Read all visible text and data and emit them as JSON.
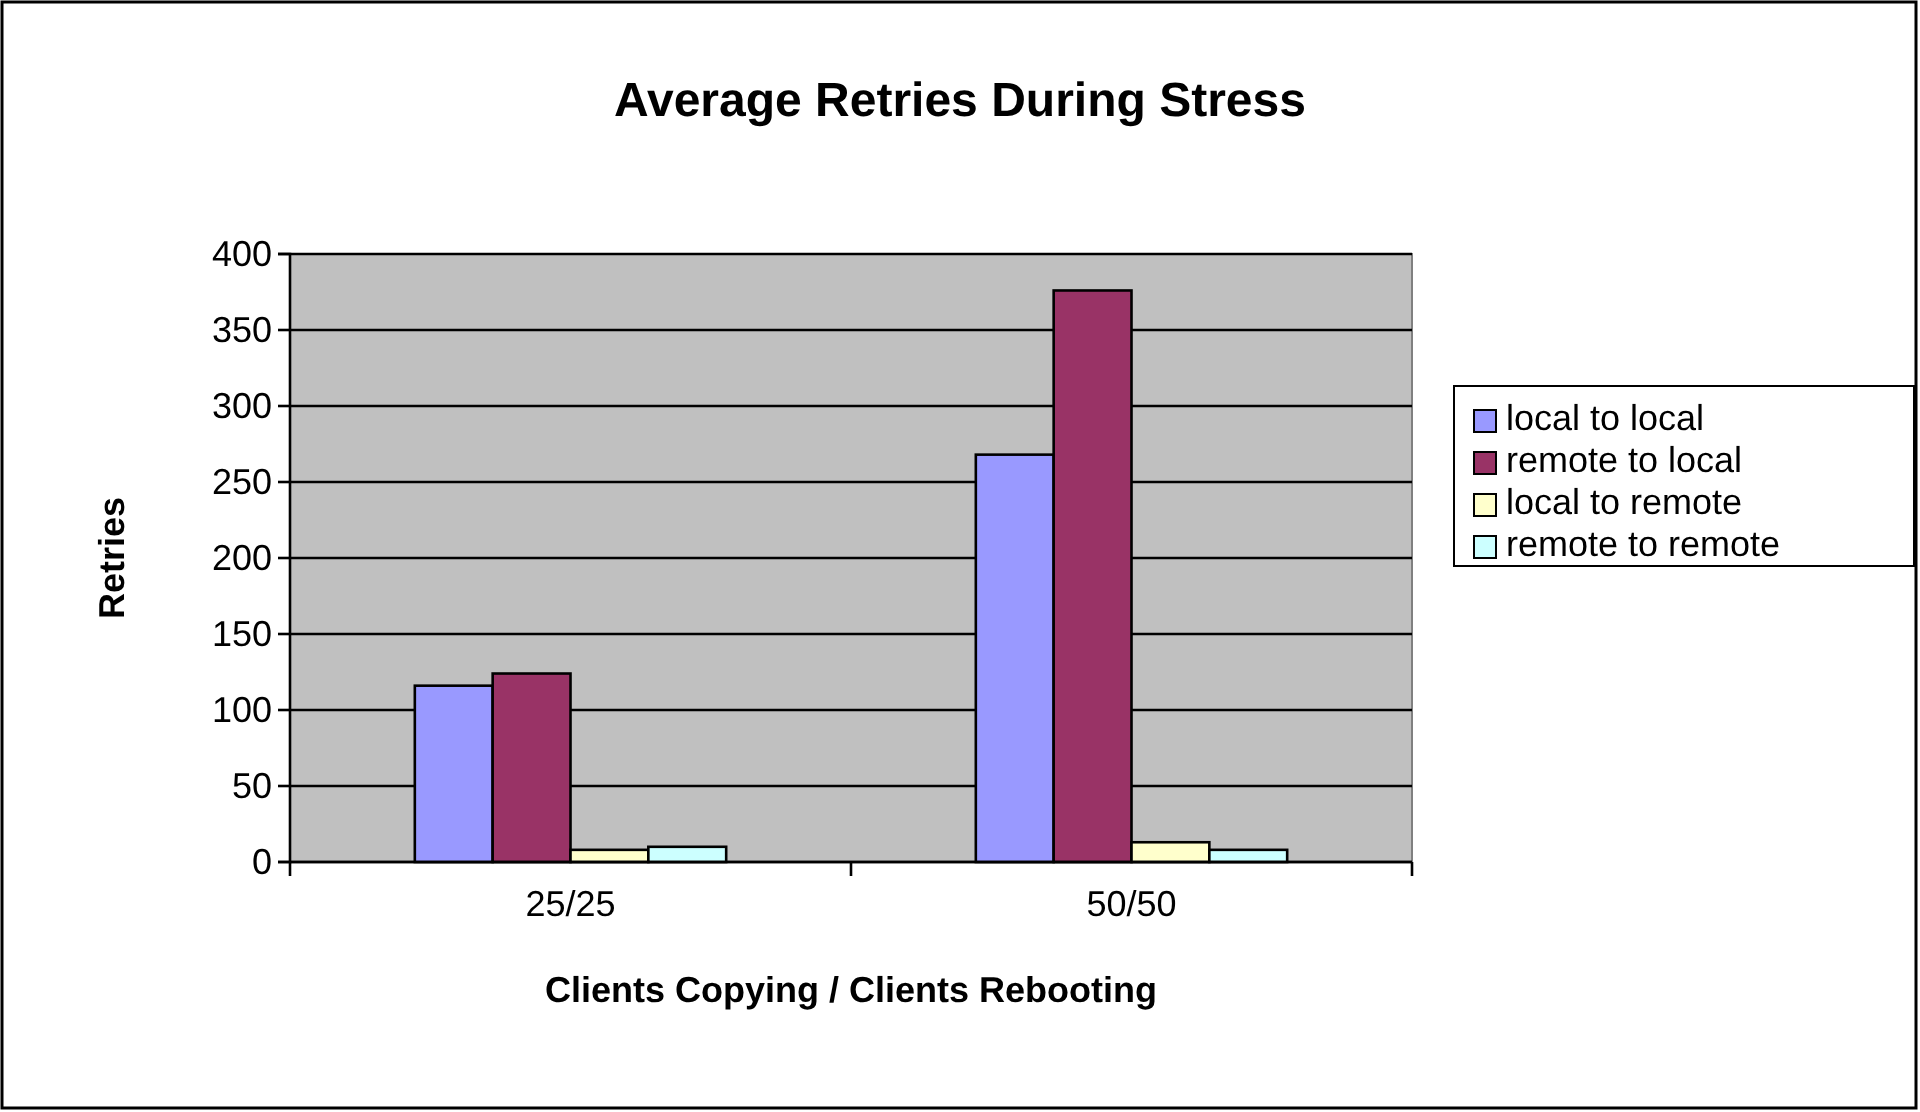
{
  "chart_data": {
    "type": "bar",
    "title": "Average Retries During Stress",
    "xlabel": "Clients Copying / Clients Rebooting",
    "ylabel": "Retries",
    "categories": [
      "25/25",
      "50/50"
    ],
    "series": [
      {
        "name": "local to local",
        "color": "#9999ff",
        "values": [
          116,
          268
        ]
      },
      {
        "name": "remote to local",
        "color": "#993366",
        "values": [
          124,
          376
        ]
      },
      {
        "name": "local to remote",
        "color": "#ffffcc",
        "values": [
          8,
          13
        ]
      },
      {
        "name": "remote to remote",
        "color": "#ccffff",
        "values": [
          10,
          8
        ]
      }
    ],
    "ylim": [
      0,
      400
    ],
    "yticks": [
      0,
      50,
      100,
      150,
      200,
      250,
      300,
      350,
      400
    ],
    "grid": "y",
    "legend": "right"
  }
}
